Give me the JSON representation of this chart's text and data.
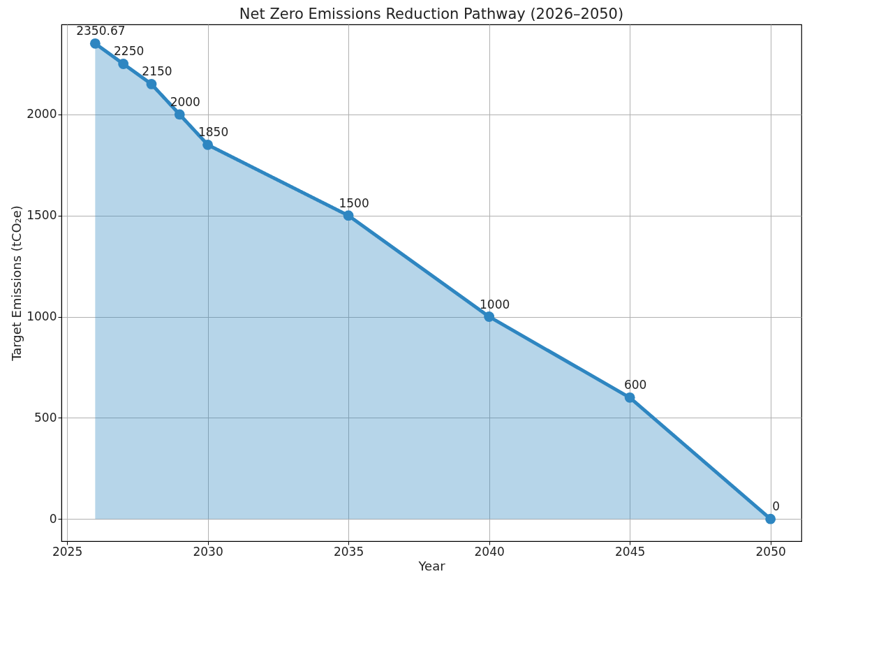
{
  "chart_data": {
    "type": "area",
    "title": "Net Zero Emissions Reduction Pathway (2026–2050)",
    "xlabel": "Year",
    "ylabel": "Target Emissions (tCO₂e)",
    "x": [
      2026,
      2027,
      2028,
      2029,
      2030,
      2035,
      2040,
      2045,
      2050
    ],
    "series": [
      {
        "color": "#2e86c1",
        "values": [
          2350.67,
          2250,
          2150,
          2000,
          1850,
          1500,
          1000,
          600,
          0
        ]
      }
    ],
    "xlim": [
      2024.8,
      2051.1
    ],
    "ylim": [
      -110,
      2445
    ],
    "xticks": [
      2025,
      2030,
      2035,
      2040,
      2045,
      2050
    ],
    "yticks": [
      0,
      500,
      1000,
      1500,
      2000
    ],
    "grid": true,
    "marker": "circle",
    "line_style": "solid",
    "data_labels": true
  }
}
